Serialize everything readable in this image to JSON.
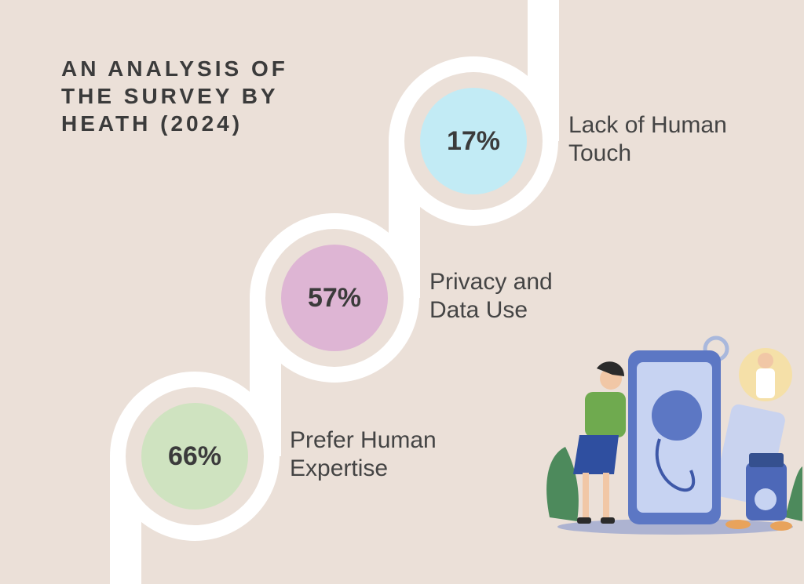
{
  "title_lines": [
    "AN ANALYSIS OF",
    "THE SURVEY BY",
    "HEATH (2024)"
  ],
  "items": [
    {
      "value": "17%",
      "label_lines": [
        "Lack of Human",
        "Touch"
      ]
    },
    {
      "value": "57%",
      "label_lines": [
        "Privacy and",
        "Data Use"
      ]
    },
    {
      "value": "66%",
      "label_lines": [
        "Prefer Human",
        "Expertise"
      ]
    }
  ]
}
